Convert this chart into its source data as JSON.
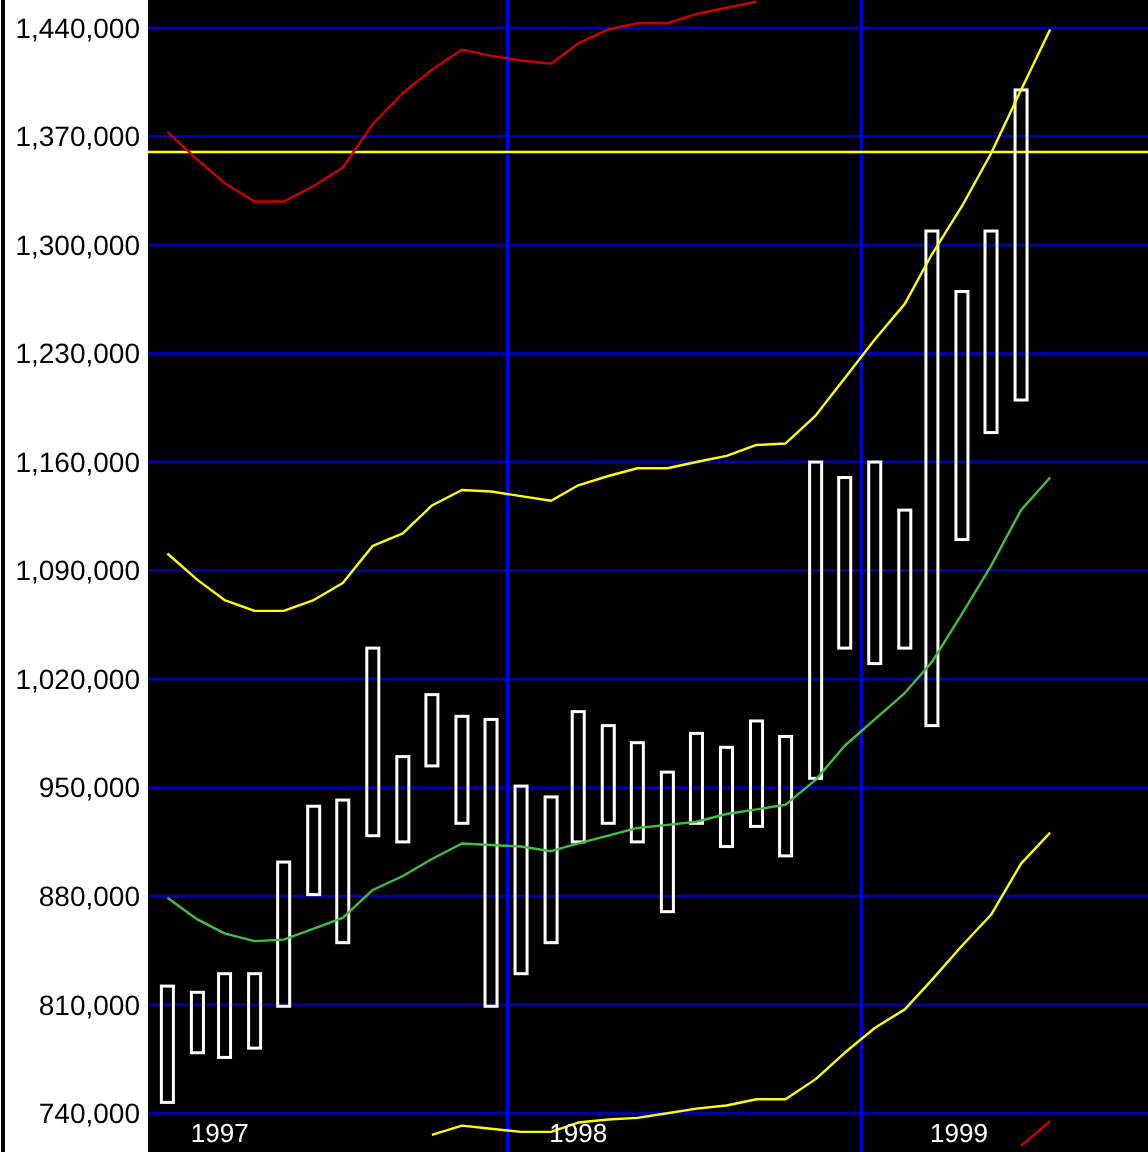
{
  "chart_data": {
    "type": "bar",
    "x": [
      "1997-01-15",
      "1997-02-15",
      "1997-03-15",
      "1997-04-15",
      "1997-05-15",
      "1997-06-15",
      "1997-07-15",
      "1997-08-15",
      "1997-09-15",
      "1997-10-15",
      "1997-11-15",
      "1997-12-15",
      "1998-01-15",
      "1998-02-15",
      "1998-03-15",
      "1998-04-15",
      "1998-05-15",
      "1998-06-15",
      "1998-07-15",
      "1998-08-15",
      "1998-09-15",
      "1998-10-15",
      "1998-11-15",
      "1998-12-15",
      "1999-01-15",
      "1999-02-15",
      "1999-03-15",
      "1999-04-15",
      "1999-05-15",
      "1999-06-15",
      "1999-07-15"
    ],
    "xlim": [
      "1996-12-26",
      "1999-10-24"
    ],
    "xticks": [
      {
        "value": "1997-03-10",
        "label": "1997"
      },
      {
        "value": "1998-03-15",
        "label": "1998"
      },
      {
        "value": "1999-04-12",
        "label": "1999"
      }
    ],
    "ylim": [
      715000,
      1458000
    ],
    "yticks": [
      {
        "value": 740000,
        "label": "740,000"
      },
      {
        "value": 810000,
        "label": "810,000"
      },
      {
        "value": 880000,
        "label": "880,000"
      },
      {
        "value": 950000,
        "label": "950,000"
      },
      {
        "value": 1020000,
        "label": "1,020,000"
      },
      {
        "value": 1090000,
        "label": "1,090,000"
      },
      {
        "value": 1160000,
        "label": "1,160,000"
      },
      {
        "value": 1230000,
        "label": "1,230,000"
      },
      {
        "value": 1300000,
        "label": "1,300,000"
      },
      {
        "value": 1370000,
        "label": "1,370,000"
      },
      {
        "value": 1440000,
        "label": "1,440,000"
      }
    ],
    "grid": "y",
    "ref_lines": [
      {
        "axis": "x",
        "value": "1998-01-01",
        "label": null,
        "color": "#0000ff"
      },
      {
        "axis": "x",
        "value": "1999-01-01",
        "label": null,
        "color": "#0000ff"
      },
      {
        "axis": "y",
        "value": 1360000,
        "label": null,
        "color": "#ffff00"
      }
    ],
    "series": [
      {
        "color": "#ffffff",
        "x": [
          "1997-01-15",
          "1997-02-15",
          "1997-03-15",
          "1997-04-15",
          "1997-05-15",
          "1997-06-15",
          "1997-07-15",
          "1997-08-15",
          "1997-09-15",
          "1997-10-15",
          "1997-11-15",
          "1997-12-15",
          "1998-01-15",
          "1998-02-15",
          "1998-03-15",
          "1998-04-15",
          "1998-05-15",
          "1998-06-15",
          "1998-07-15",
          "1998-08-15",
          "1998-09-15",
          "1998-10-15",
          "1998-11-15",
          "1998-12-15",
          "1999-01-15",
          "1999-02-15",
          "1999-03-15",
          "1999-04-15",
          "1999-05-15",
          "1999-06-15"
        ],
        "base": [
          747000,
          779000,
          776000,
          782000,
          809000,
          881000,
          850000,
          919000,
          915000,
          964000,
          927000,
          809000,
          830000,
          850000,
          915000,
          927000,
          915000,
          870000,
          927000,
          912000,
          925000,
          906000,
          956000,
          1040000,
          1030000,
          1040000,
          990000,
          1110000,
          1179000,
          1200000
        ],
        "values": [
          75000,
          39000,
          54000,
          48000,
          93000,
          57000,
          92000,
          121000,
          55000,
          46000,
          69000,
          185000,
          121000,
          94000,
          84000,
          63000,
          64000,
          90000,
          58000,
          64000,
          68000,
          77000,
          204000,
          110000,
          130000,
          89000,
          319000,
          160000,
          130000,
          200000
        ]
      },
      {
        "type": "line",
        "color": "#cc0000",
        "values": [
          1373000,
          1355000,
          1340000,
          1328000,
          1328000,
          1338000,
          1350000,
          1378000,
          1398000,
          1413000,
          1426000,
          1422000,
          1419000,
          1417000,
          1430000,
          1439000,
          1443000,
          1443000,
          1449000,
          1453000,
          1457000,
          null,
          null,
          null,
          null,
          null,
          null,
          null,
          null,
          null,
          null
        ]
      },
      {
        "type": "line",
        "color": "#ffff00",
        "values": [
          1101000,
          1084000,
          1071000,
          1064000,
          1064000,
          1071000,
          1082000,
          1106000,
          1114000,
          1132000,
          1142000,
          1141000,
          1138000,
          1135000,
          1145000,
          1151000,
          1156000,
          1156000,
          1160000,
          1164000,
          1171000,
          1172000,
          1190000,
          1214000,
          1239000,
          1262000,
          1294000,
          1325000,
          1359000,
          1400000,
          1439000
        ]
      },
      {
        "type": "line",
        "color": "#40c040",
        "values": [
          879000,
          865000,
          856000,
          851000,
          852000,
          859000,
          866000,
          884000,
          893000,
          904000,
          914000,
          913000,
          912000,
          909000,
          914000,
          919000,
          924000,
          926000,
          928000,
          933000,
          936000,
          939000,
          955000,
          977000,
          994000,
          1011000,
          1031000,
          1062000,
          1093000,
          1129000,
          1150000
        ]
      },
      {
        "type": "line",
        "color": "#ffff00",
        "values": [
          null,
          null,
          null,
          null,
          null,
          null,
          null,
          null,
          null,
          726000,
          732000,
          730000,
          728000,
          728000,
          734000,
          736000,
          737000,
          740000,
          743000,
          745000,
          749000,
          749000,
          762000,
          779000,
          795000,
          807000,
          826000,
          848000,
          868000,
          901000,
          921000
        ]
      },
      {
        "type": "line",
        "color": "#cc0000",
        "values": [
          null,
          null,
          null,
          null,
          null,
          null,
          null,
          null,
          null,
          null,
          null,
          null,
          null,
          null,
          null,
          null,
          null,
          null,
          null,
          null,
          null,
          null,
          null,
          null,
          null,
          null,
          null,
          null,
          null,
          719000,
          735000
        ]
      }
    ]
  }
}
